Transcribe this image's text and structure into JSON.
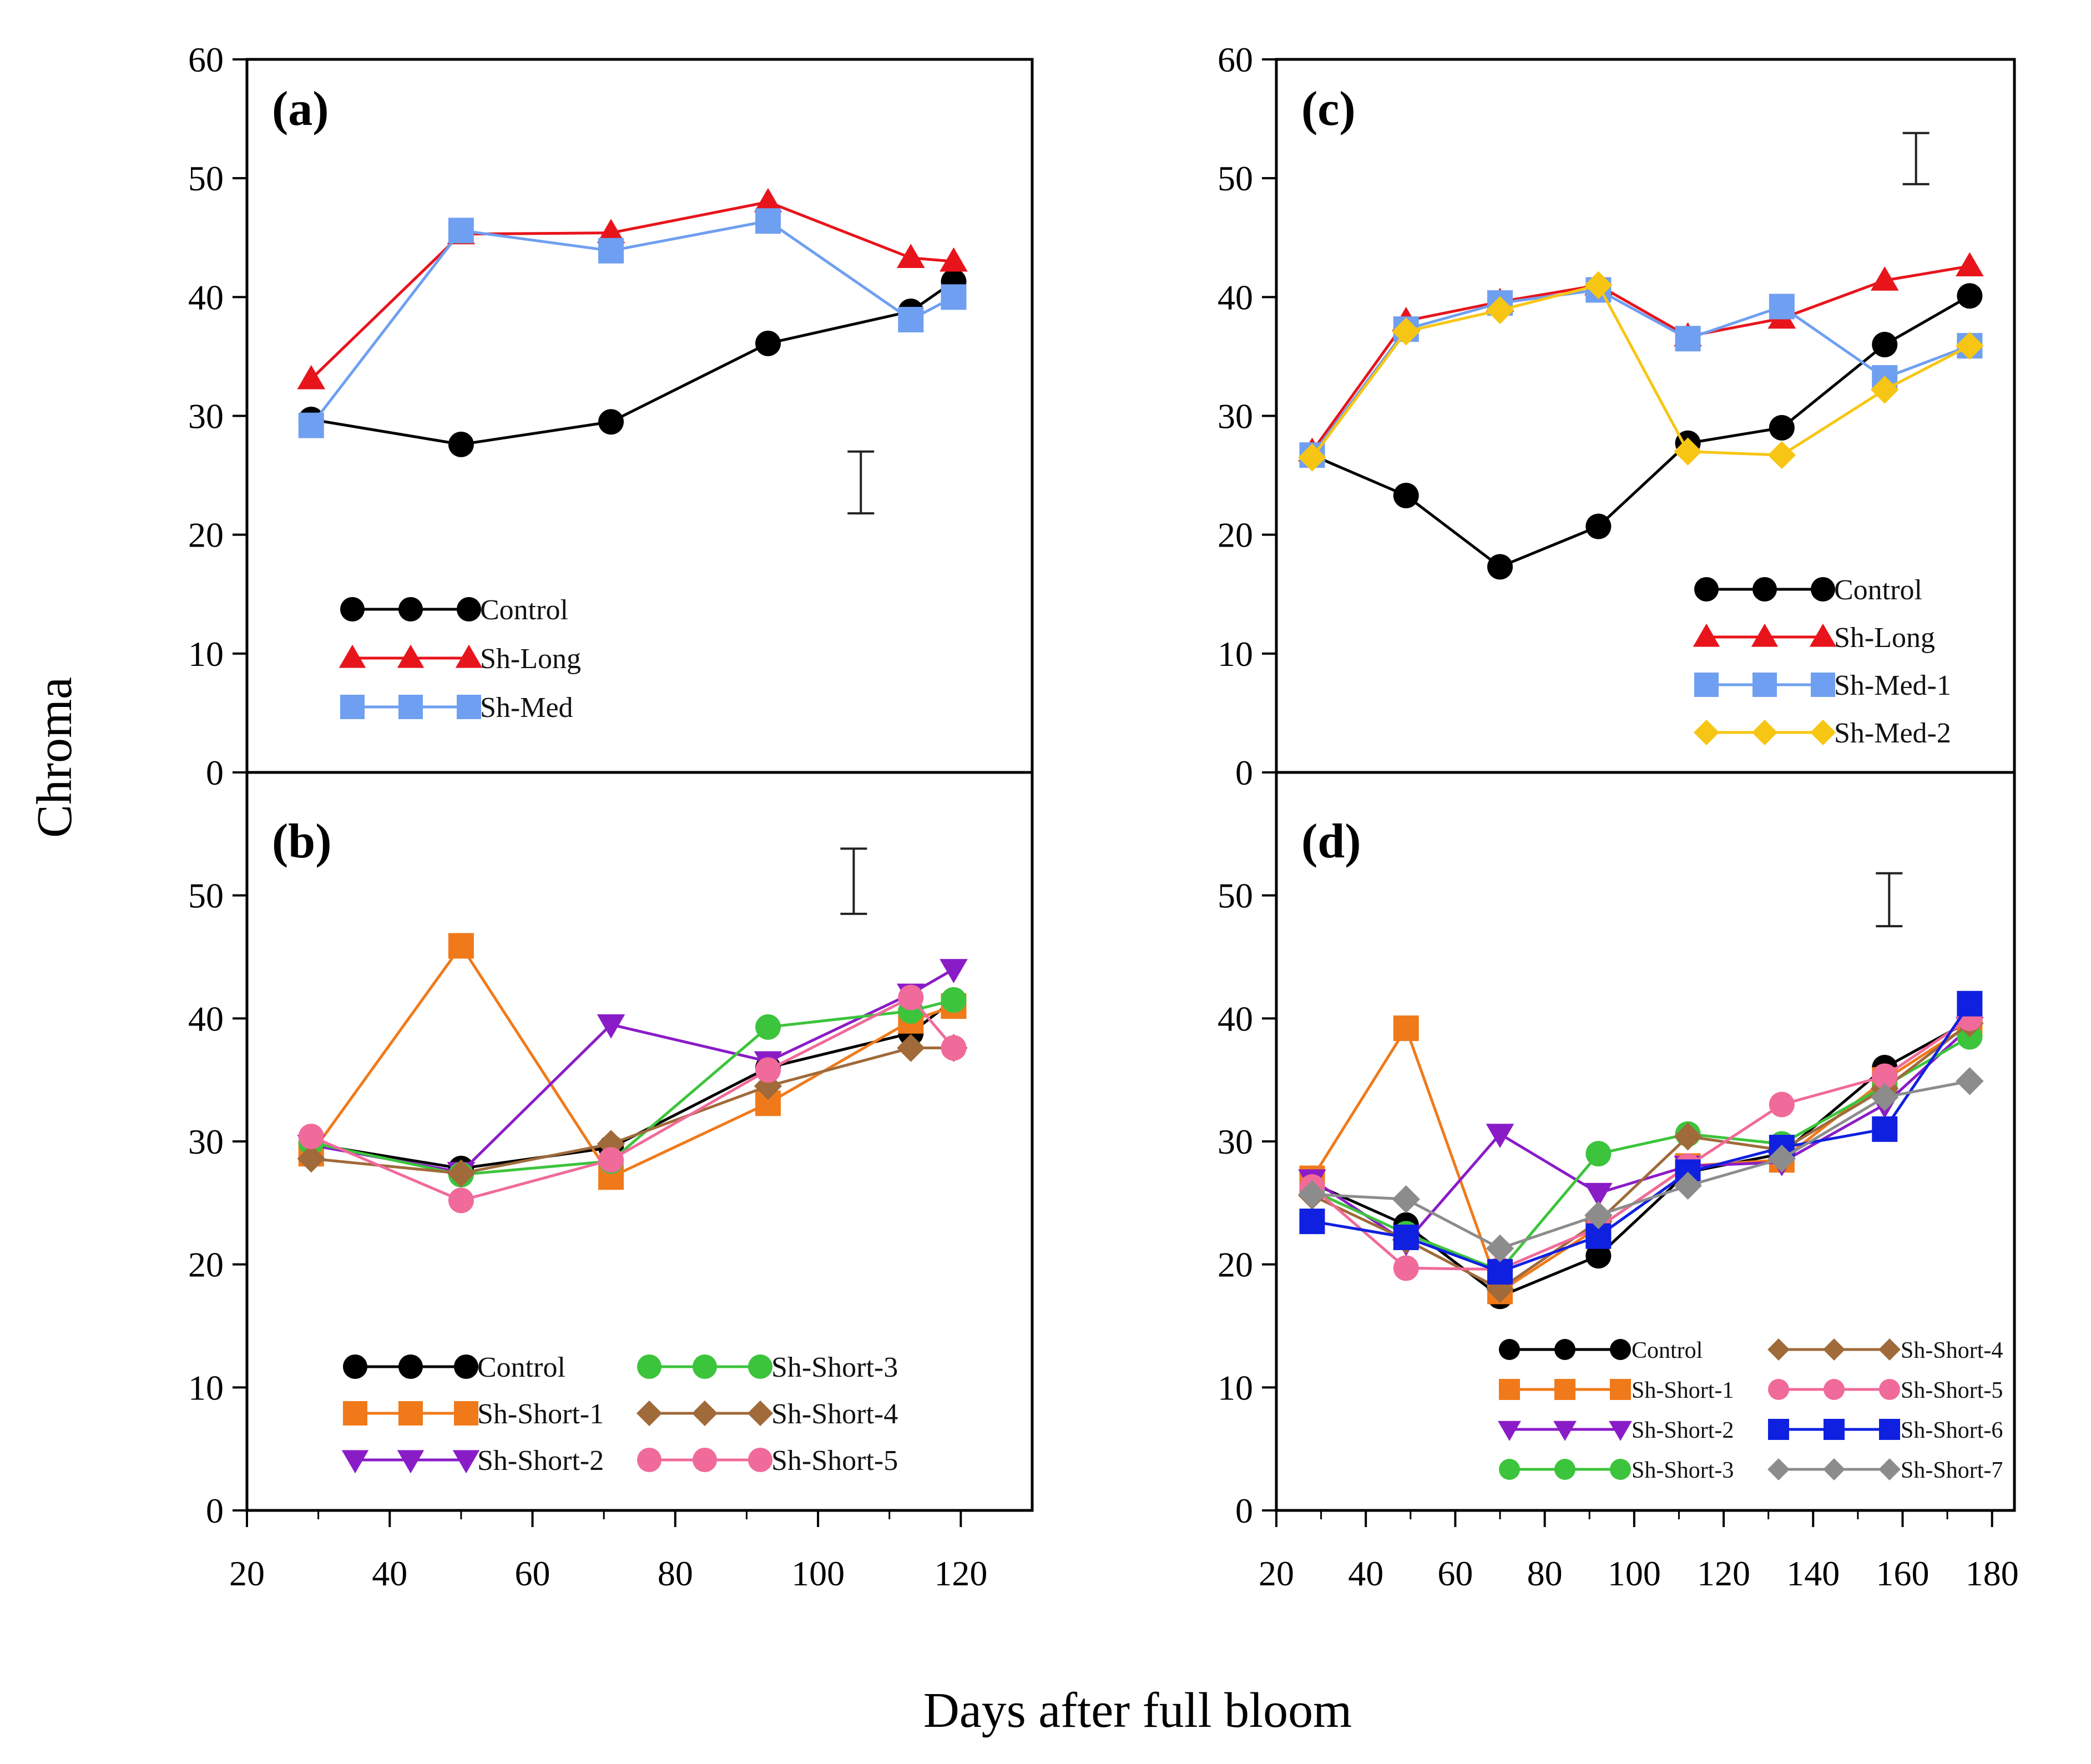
{
  "figure": {
    "ylabel": "Chroma",
    "xlabel": "Days after full bloom"
  },
  "chart_data": [
    {
      "type": "line",
      "panel": "(a)",
      "xlim": [
        20,
        130
      ],
      "ylim": [
        0,
        60
      ],
      "yticks": [
        "0",
        "10",
        "20",
        "30",
        "40",
        "50",
        "60"
      ],
      "xticks": [],
      "error_bar": {
        "x": 106,
        "y_low": 21.8,
        "y_high": 27
      },
      "legend_columns": 1,
      "series": [
        {
          "name": "Control",
          "color": "#000000",
          "marker": "circle",
          "x": [
            29,
            50,
            71,
            93,
            113,
            119
          ],
          "values": [
            29.7,
            27.6,
            29.5,
            36.1,
            38.8,
            41.3
          ]
        },
        {
          "name": "Sh-Long",
          "color": "#e8141c",
          "marker": "triangle-up",
          "x": [
            29,
            50,
            71,
            93,
            113,
            119
          ],
          "values": [
            33.1,
            45.3,
            45.4,
            48.0,
            43.3,
            43.0
          ]
        },
        {
          "name": "Sh-Med",
          "color": "#6f9ff0",
          "marker": "square",
          "x": [
            29,
            50,
            71,
            93,
            113,
            119
          ],
          "values": [
            29.2,
            45.6,
            43.9,
            46.4,
            38.1,
            40.0
          ]
        }
      ]
    },
    {
      "type": "line",
      "panel": "(b)",
      "xlim": [
        20,
        130
      ],
      "ylim": [
        0,
        60
      ],
      "yticks": [
        "0",
        "10",
        "20",
        "30",
        "40",
        "50"
      ],
      "xticks": [
        "20",
        "40",
        "60",
        "80",
        "100",
        "120"
      ],
      "error_bar": {
        "x": 105,
        "y_low": 48.5,
        "y_high": 53.8
      },
      "legend_columns": 2,
      "series": [
        {
          "name": "Control",
          "color": "#000000",
          "marker": "circle",
          "x": [
            29,
            50,
            71,
            93,
            113,
            119
          ],
          "values": [
            29.8,
            27.8,
            29.5,
            36.0,
            38.8,
            41.5
          ]
        },
        {
          "name": "Sh-Short-1",
          "color": "#f07a1a",
          "marker": "square",
          "x": [
            29,
            50,
            71,
            93,
            113,
            119
          ],
          "values": [
            29.0,
            45.9,
            27.1,
            33.1,
            39.8,
            41.0
          ]
        },
        {
          "name": "Sh-Short-2",
          "color": "#8a1cc8",
          "marker": "triangle-down",
          "x": [
            29,
            50,
            71,
            93,
            113,
            119
          ],
          "values": [
            29.7,
            27.5,
            39.5,
            36.5,
            42.0,
            44.0
          ]
        },
        {
          "name": "Sh-Short-3",
          "color": "#3cc43c",
          "marker": "circle",
          "x": [
            29,
            50,
            71,
            93,
            113,
            119
          ],
          "values": [
            29.9,
            27.3,
            28.4,
            39.3,
            40.6,
            41.5
          ]
        },
        {
          "name": "Sh-Short-4",
          "color": "#a06a3a",
          "marker": "diamond",
          "x": [
            29,
            50,
            71,
            93,
            113,
            119
          ],
          "values": [
            28.6,
            27.4,
            29.8,
            34.5,
            37.6,
            37.6
          ]
        },
        {
          "name": "Sh-Short-5",
          "color": "#f06a9a",
          "marker": "circle",
          "x": [
            29,
            50,
            71,
            93,
            113,
            119
          ],
          "values": [
            30.4,
            25.2,
            28.5,
            35.8,
            41.7,
            37.6
          ]
        }
      ]
    },
    {
      "type": "line",
      "panel": "(c)",
      "xlim": [
        20,
        185
      ],
      "ylim": [
        0,
        60
      ],
      "yticks": [
        "0",
        "10",
        "20",
        "30",
        "40",
        "50",
        "60"
      ],
      "xticks": [],
      "error_bar": {
        "x": 163,
        "y_low": 49.5,
        "y_high": 53.8
      },
      "legend_columns": 1,
      "series": [
        {
          "name": "Control",
          "color": "#000000",
          "marker": "circle",
          "x": [
            28,
            49,
            70,
            92,
            112,
            133,
            156,
            175
          ],
          "values": [
            26.7,
            23.3,
            17.3,
            20.7,
            27.7,
            29.0,
            36.0,
            40.1
          ]
        },
        {
          "name": "Sh-Long",
          "color": "#e8141c",
          "marker": "triangle-up",
          "x": [
            28,
            49,
            70,
            92,
            112,
            133,
            156,
            175
          ],
          "values": [
            27.0,
            38.0,
            39.6,
            41.0,
            36.7,
            38.2,
            41.4,
            42.6
          ]
        },
        {
          "name": "Sh-Med-1",
          "color": "#6f9ff0",
          "marker": "square",
          "x": [
            28,
            49,
            70,
            92,
            112,
            133,
            156,
            175
          ],
          "values": [
            26.7,
            37.3,
            39.5,
            40.6,
            36.5,
            39.2,
            33.2,
            35.9
          ]
        },
        {
          "name": "Sh-Med-2",
          "color": "#f7c614",
          "marker": "diamond",
          "x": [
            28,
            49,
            70,
            92,
            112,
            133,
            156,
            175
          ],
          "values": [
            26.5,
            37.1,
            38.9,
            41.0,
            27.0,
            26.7,
            32.2,
            35.9
          ]
        }
      ]
    },
    {
      "type": "line",
      "panel": "(d)",
      "xlim": [
        20,
        185
      ],
      "ylim": [
        0,
        60
      ],
      "yticks": [
        "0",
        "10",
        "20",
        "30",
        "40",
        "50"
      ],
      "xticks": [
        "20",
        "40",
        "60",
        "80",
        "100",
        "120",
        "140",
        "160",
        "180"
      ],
      "error_bar": {
        "x": 157,
        "y_low": 47.5,
        "y_high": 51.8
      },
      "legend_columns": 2,
      "series": [
        {
          "name": "Control",
          "color": "#000000",
          "marker": "circle",
          "x": [
            28,
            49,
            70,
            92,
            112,
            133,
            156,
            175
          ],
          "values": [
            26.6,
            23.2,
            17.4,
            20.7,
            27.5,
            29.0,
            36.0,
            39.8
          ]
        },
        {
          "name": "Sh-Short-1",
          "color": "#f07a1a",
          "marker": "square",
          "x": [
            28,
            49,
            70,
            92,
            112,
            133,
            156,
            175
          ],
          "values": [
            27.0,
            39.2,
            17.8,
            23.0,
            28.0,
            28.5,
            35.0,
            39.5
          ]
        },
        {
          "name": "Sh-Short-2",
          "color": "#8a1cc8",
          "marker": "triangle-down",
          "x": [
            28,
            49,
            70,
            92,
            112,
            133,
            156,
            175
          ],
          "values": [
            26.9,
            21.8,
            30.6,
            25.8,
            28.0,
            28.3,
            33.0,
            39.3
          ]
        },
        {
          "name": "Sh-Short-3",
          "color": "#3cc43c",
          "marker": "circle",
          "x": [
            28,
            49,
            70,
            92,
            112,
            133,
            156,
            175
          ],
          "values": [
            26.0,
            22.5,
            19.5,
            29.0,
            30.6,
            29.8,
            34.5,
            38.5
          ]
        },
        {
          "name": "Sh-Short-4",
          "color": "#a06a3a",
          "marker": "diamond",
          "x": [
            28,
            49,
            70,
            92,
            112,
            133,
            156,
            175
          ],
          "values": [
            25.6,
            22.0,
            18.0,
            23.5,
            30.4,
            29.3,
            34.3,
            39.6
          ]
        },
        {
          "name": "Sh-Short-5",
          "color": "#f06a9a",
          "marker": "circle",
          "x": [
            28,
            49,
            70,
            92,
            112,
            133,
            156,
            175
          ],
          "values": [
            26.3,
            19.7,
            19.6,
            23.0,
            28.0,
            33.0,
            35.3,
            40.0
          ]
        },
        {
          "name": "Sh-Short-6",
          "color": "#1020e0",
          "marker": "square",
          "x": [
            28,
            49,
            70,
            92,
            112,
            133,
            156,
            175
          ],
          "values": [
            23.5,
            22.2,
            19.4,
            22.3,
            27.5,
            29.5,
            31.0,
            41.2
          ]
        },
        {
          "name": "Sh-Short-7",
          "color": "#8c8c8c",
          "marker": "diamond",
          "x": [
            28,
            49,
            70,
            92,
            112,
            133,
            156,
            175
          ],
          "values": [
            25.7,
            25.3,
            21.3,
            24.0,
            26.4,
            28.6,
            33.6,
            34.9
          ]
        }
      ]
    }
  ]
}
